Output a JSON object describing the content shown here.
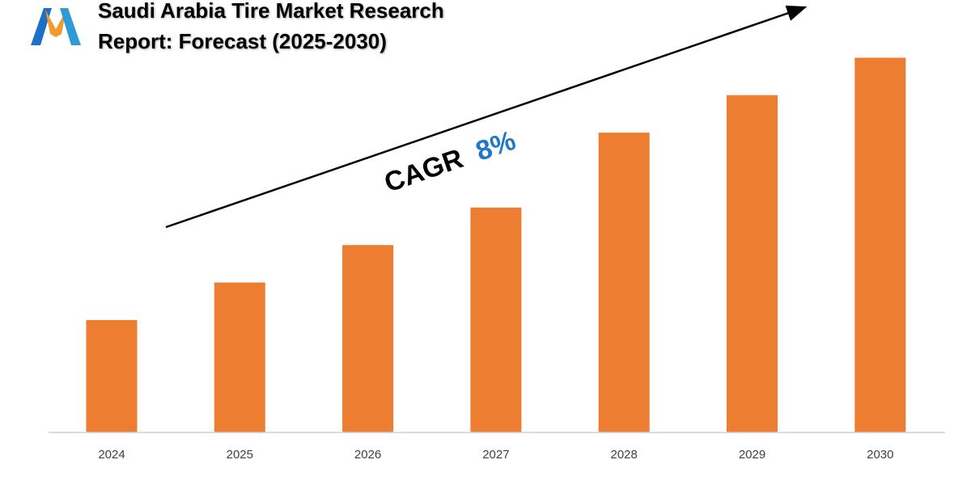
{
  "title": {
    "line1": "Saudi Arabia Tire Market Research",
    "line2": "Report: Forecast (2025-2030)"
  },
  "logo": {
    "icon": "m-logo-icon",
    "colors": [
      "#1f6fc4",
      "#f29a2e",
      "#2e9ad6"
    ]
  },
  "annotation": {
    "label": "CAGR",
    "value": "8%",
    "label_color": "#000000",
    "value_color": "#1f77c8"
  },
  "colors": {
    "bar": "#ed7d31",
    "axis": "#d0d0d0",
    "arrow": "#000000"
  },
  "chart_data": {
    "type": "bar",
    "title": "Saudi Arabia Tire Market Research Report: Forecast (2025-2030)",
    "categories": [
      "2024",
      "2025",
      "2026",
      "2027",
      "2028",
      "2029",
      "2030"
    ],
    "values": [
      30,
      40,
      50,
      60,
      80,
      90,
      100
    ],
    "xlabel": "",
    "ylabel": "",
    "ylim": [
      0,
      110
    ],
    "grid": false,
    "legend": "none",
    "annotations": [
      "CAGR 8%"
    ]
  }
}
